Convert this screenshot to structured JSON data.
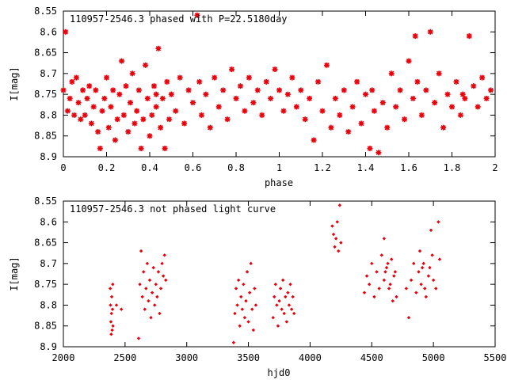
{
  "chart_data": [
    {
      "type": "scatter",
      "title": "110957-2546.3 phased with P=22.5180day",
      "xlabel": "phase",
      "ylabel": "I[mag]",
      "xlim": [
        0,
        2
      ],
      "ylim": [
        8.9,
        8.55
      ],
      "y_inverted": true,
      "grid": false,
      "marker": "star",
      "color": "#e8000b",
      "x_ticks": [
        0,
        0.2,
        0.4,
        0.6,
        0.8,
        1,
        1.2,
        1.4,
        1.6,
        1.8,
        2
      ],
      "x_tick_labels": [
        "0",
        "0.2",
        "0.4",
        "0.6",
        "0.8",
        "1",
        "1.2",
        "1.4",
        "1.6",
        "1.8",
        "2"
      ],
      "y_ticks": [
        8.55,
        8.6,
        8.65,
        8.7,
        8.75,
        8.8,
        8.85,
        8.9
      ],
      "y_tick_labels": [
        "8.55",
        "8.6",
        "8.65",
        "8.7",
        "8.75",
        "8.8",
        "8.85",
        "8.9"
      ],
      "points": [
        [
          0.0,
          8.74
        ],
        [
          0.01,
          8.6
        ],
        [
          0.02,
          8.79
        ],
        [
          0.03,
          8.76
        ],
        [
          0.04,
          8.72
        ],
        [
          0.05,
          8.8
        ],
        [
          0.06,
          8.71
        ],
        [
          0.07,
          8.77
        ],
        [
          0.08,
          8.81
        ],
        [
          0.09,
          8.74
        ],
        [
          0.1,
          8.8
        ],
        [
          0.11,
          8.76
        ],
        [
          0.12,
          8.73
        ],
        [
          0.13,
          8.82
        ],
        [
          0.14,
          8.78
        ],
        [
          0.15,
          8.74
        ],
        [
          0.16,
          8.84
        ],
        [
          0.17,
          8.88
        ],
        [
          0.18,
          8.79
        ],
        [
          0.19,
          8.76
        ],
        [
          0.2,
          8.71
        ],
        [
          0.21,
          8.83
        ],
        [
          0.22,
          8.78
        ],
        [
          0.23,
          8.74
        ],
        [
          0.24,
          8.86
        ],
        [
          0.25,
          8.81
        ],
        [
          0.26,
          8.75
        ],
        [
          0.27,
          8.67
        ],
        [
          0.28,
          8.8
        ],
        [
          0.29,
          8.73
        ],
        [
          0.3,
          8.84
        ],
        [
          0.31,
          8.77
        ],
        [
          0.32,
          8.7
        ],
        [
          0.33,
          8.82
        ],
        [
          0.34,
          8.79
        ],
        [
          0.35,
          8.74
        ],
        [
          0.36,
          8.88
        ],
        [
          0.37,
          8.81
        ],
        [
          0.38,
          8.68
        ],
        [
          0.39,
          8.76
        ],
        [
          0.4,
          8.85
        ],
        [
          0.41,
          8.8
        ],
        [
          0.42,
          8.73
        ],
        [
          0.43,
          8.78
        ],
        [
          0.44,
          8.64
        ],
        [
          0.45,
          8.83
        ],
        [
          0.46,
          8.76
        ],
        [
          0.47,
          8.88
        ],
        [
          0.48,
          8.72
        ],
        [
          0.49,
          8.81
        ],
        [
          0.5,
          8.75
        ],
        [
          0.52,
          8.79
        ],
        [
          0.54,
          8.71
        ],
        [
          0.56,
          8.82
        ],
        [
          0.58,
          8.74
        ],
        [
          0.6,
          8.77
        ],
        [
          0.62,
          8.56
        ],
        [
          0.63,
          8.72
        ],
        [
          0.64,
          8.8
        ],
        [
          0.66,
          8.75
        ],
        [
          0.68,
          8.83
        ],
        [
          0.7,
          8.71
        ],
        [
          0.72,
          8.78
        ],
        [
          0.74,
          8.74
        ],
        [
          0.76,
          8.81
        ],
        [
          0.78,
          8.69
        ],
        [
          0.8,
          8.76
        ],
        [
          0.82,
          8.73
        ],
        [
          0.84,
          8.79
        ],
        [
          0.86,
          8.71
        ],
        [
          0.88,
          8.77
        ],
        [
          0.9,
          8.74
        ],
        [
          0.92,
          8.8
        ],
        [
          0.94,
          8.72
        ],
        [
          0.96,
          8.76
        ],
        [
          0.98,
          8.69
        ],
        [
          1.0,
          8.74
        ],
        [
          1.02,
          8.79
        ],
        [
          1.04,
          8.75
        ],
        [
          1.06,
          8.71
        ],
        [
          1.08,
          8.78
        ],
        [
          1.1,
          8.74
        ],
        [
          1.12,
          8.81
        ],
        [
          1.14,
          8.76
        ],
        [
          1.16,
          8.86
        ],
        [
          1.18,
          8.72
        ],
        [
          1.2,
          8.79
        ],
        [
          1.22,
          8.68
        ],
        [
          1.24,
          8.83
        ],
        [
          1.26,
          8.76
        ],
        [
          1.28,
          8.8
        ],
        [
          1.3,
          8.74
        ],
        [
          1.32,
          8.84
        ],
        [
          1.34,
          8.78
        ],
        [
          1.36,
          8.72
        ],
        [
          1.38,
          8.82
        ],
        [
          1.4,
          8.75
        ],
        [
          1.42,
          8.88
        ],
        [
          1.44,
          8.79
        ],
        [
          1.46,
          8.89
        ],
        [
          1.48,
          8.77
        ],
        [
          1.5,
          8.83
        ],
        [
          1.52,
          8.7
        ],
        [
          1.54,
          8.78
        ],
        [
          1.56,
          8.74
        ],
        [
          1.58,
          8.81
        ],
        [
          1.6,
          8.67
        ],
        [
          1.62,
          8.76
        ],
        [
          1.64,
          8.72
        ],
        [
          1.66,
          8.8
        ],
        [
          1.68,
          8.74
        ],
        [
          1.7,
          8.6
        ],
        [
          1.72,
          8.77
        ],
        [
          1.74,
          8.7
        ],
        [
          1.76,
          8.83
        ],
        [
          1.78,
          8.75
        ],
        [
          1.8,
          8.78
        ],
        [
          1.82,
          8.72
        ],
        [
          1.84,
          8.8
        ],
        [
          1.86,
          8.76
        ],
        [
          1.88,
          8.61
        ],
        [
          1.9,
          8.73
        ],
        [
          1.92,
          8.78
        ],
        [
          1.94,
          8.71
        ],
        [
          1.96,
          8.76
        ],
        [
          1.98,
          8.74
        ],
        [
          0.43,
          8.75
        ],
        [
          1.43,
          8.74
        ],
        [
          1.63,
          8.61
        ],
        [
          1.85,
          8.75
        ]
      ]
    },
    {
      "type": "scatter",
      "title": "110957-2546.3 not phased light curve",
      "xlabel": "hjd0",
      "ylabel": "I[mag]",
      "xlim": [
        2000,
        5500
      ],
      "ylim": [
        8.9,
        8.55
      ],
      "y_inverted": true,
      "grid": false,
      "marker": "diamond",
      "color": "#e8000b",
      "x_ticks": [
        2000,
        2500,
        3000,
        3500,
        4000,
        4500,
        5000,
        5500
      ],
      "x_tick_labels": [
        "2000",
        "2500",
        "3000",
        "3500",
        "4000",
        "4500",
        "5000",
        "5500"
      ],
      "y_ticks": [
        8.55,
        8.6,
        8.65,
        8.7,
        8.75,
        8.8,
        8.85,
        8.9
      ],
      "y_tick_labels": [
        "8.55",
        "8.6",
        "8.65",
        "8.7",
        "8.75",
        "8.8",
        "8.85",
        "8.9"
      ],
      "points": [
        [
          2380,
          8.76
        ],
        [
          2382,
          8.8
        ],
        [
          2385,
          8.84
        ],
        [
          2388,
          8.87
        ],
        [
          2390,
          8.82
        ],
        [
          2392,
          8.78
        ],
        [
          2395,
          8.86
        ],
        [
          2398,
          8.81
        ],
        [
          2400,
          8.75
        ],
        [
          2402,
          8.85
        ],
        [
          2430,
          8.8
        ],
        [
          2470,
          8.81
        ],
        [
          2610,
          8.88
        ],
        [
          2620,
          8.75
        ],
        [
          2630,
          8.67
        ],
        [
          2640,
          8.78
        ],
        [
          2650,
          8.72
        ],
        [
          2660,
          8.81
        ],
        [
          2670,
          8.76
        ],
        [
          2680,
          8.7
        ],
        [
          2690,
          8.79
        ],
        [
          2700,
          8.74
        ],
        [
          2710,
          8.83
        ],
        [
          2720,
          8.77
        ],
        [
          2730,
          8.71
        ],
        [
          2740,
          8.8
        ],
        [
          2750,
          8.75
        ],
        [
          2760,
          8.78
        ],
        [
          2770,
          8.72
        ],
        [
          2780,
          8.82
        ],
        [
          2790,
          8.76
        ],
        [
          2800,
          8.7
        ],
        [
          2810,
          8.73
        ],
        [
          2820,
          8.68
        ],
        [
          2830,
          8.74
        ],
        [
          3380,
          8.89
        ],
        [
          3390,
          8.82
        ],
        [
          3400,
          8.76
        ],
        [
          3410,
          8.8
        ],
        [
          3420,
          8.74
        ],
        [
          3430,
          8.85
        ],
        [
          3440,
          8.78
        ],
        [
          3450,
          8.81
        ],
        [
          3460,
          8.75
        ],
        [
          3470,
          8.83
        ],
        [
          3480,
          8.79
        ],
        [
          3490,
          8.72
        ],
        [
          3500,
          8.84
        ],
        [
          3510,
          8.77
        ],
        [
          3520,
          8.7
        ],
        [
          3530,
          8.81
        ],
        [
          3540,
          8.86
        ],
        [
          3550,
          8.76
        ],
        [
          3560,
          8.8
        ],
        [
          3700,
          8.83
        ],
        [
          3710,
          8.78
        ],
        [
          3720,
          8.75
        ],
        [
          3730,
          8.8
        ],
        [
          3740,
          8.85
        ],
        [
          3750,
          8.79
        ],
        [
          3760,
          8.76
        ],
        [
          3770,
          8.81
        ],
        [
          3780,
          8.74
        ],
        [
          3790,
          8.82
        ],
        [
          3800,
          8.78
        ],
        [
          3810,
          8.84
        ],
        [
          3820,
          8.77
        ],
        [
          3830,
          8.8
        ],
        [
          3840,
          8.75
        ],
        [
          3850,
          8.81
        ],
        [
          3860,
          8.78
        ],
        [
          3870,
          8.82
        ],
        [
          4180,
          8.61
        ],
        [
          4190,
          8.63
        ],
        [
          4200,
          8.66
        ],
        [
          4210,
          8.64
        ],
        [
          4220,
          8.6
        ],
        [
          4230,
          8.67
        ],
        [
          4240,
          8.56
        ],
        [
          4250,
          8.65
        ],
        [
          4440,
          8.77
        ],
        [
          4460,
          8.73
        ],
        [
          4480,
          8.75
        ],
        [
          4500,
          8.7
        ],
        [
          4520,
          8.78
        ],
        [
          4540,
          8.72
        ],
        [
          4560,
          8.76
        ],
        [
          4580,
          8.68
        ],
        [
          4600,
          8.74
        ],
        [
          4620,
          8.71
        ],
        [
          4640,
          8.76
        ],
        [
          4660,
          8.69
        ],
        [
          4680,
          8.73
        ],
        [
          4700,
          8.78
        ],
        [
          4600,
          8.64
        ],
        [
          4610,
          8.72
        ],
        [
          4630,
          8.7
        ],
        [
          4650,
          8.75
        ],
        [
          4670,
          8.79
        ],
        [
          4690,
          8.72
        ],
        [
          4780,
          8.76
        ],
        [
          4800,
          8.83
        ],
        [
          4820,
          8.74
        ],
        [
          4840,
          8.7
        ],
        [
          4860,
          8.77
        ],
        [
          4880,
          8.72
        ],
        [
          4900,
          8.75
        ],
        [
          4920,
          8.7
        ],
        [
          4940,
          8.78
        ],
        [
          4960,
          8.73
        ],
        [
          4980,
          8.62
        ],
        [
          5000,
          8.74
        ],
        [
          5020,
          8.76
        ],
        [
          5040,
          8.6
        ],
        [
          5050,
          8.69
        ],
        [
          4890,
          8.67
        ],
        [
          4910,
          8.71
        ],
        [
          4930,
          8.76
        ],
        [
          4970,
          8.71
        ],
        [
          4990,
          8.68
        ]
      ]
    }
  ]
}
